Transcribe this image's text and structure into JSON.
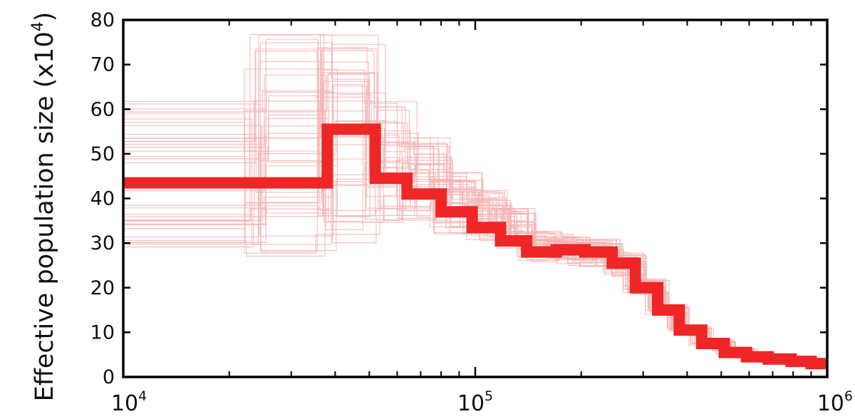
{
  "chart_data": {
    "type": "line",
    "title": "",
    "xlabel": "",
    "ylabel": {
      "text": "Effective population size (x10",
      "superscript": "4",
      "close": ")"
    },
    "x_scale": "log",
    "xlim": [
      10000,
      1000000
    ],
    "ylim": [
      0,
      80
    ],
    "grid": false,
    "legend": "none",
    "y_ticks": [
      "0",
      "10",
      "20",
      "30",
      "40",
      "50",
      "60",
      "70",
      "80"
    ],
    "x_ticks": [
      {
        "base": "10",
        "exp": "4"
      },
      {
        "base": "10",
        "exp": "5"
      },
      {
        "base": "10",
        "exp": "6"
      }
    ],
    "colors": {
      "main": "#ee2626",
      "bootstrap": "#f5b3b3",
      "axes": "#000000"
    },
    "series": [
      {
        "role": "main",
        "x": [
          10000,
          24000,
          38000,
          52000,
          64000,
          80000,
          98000,
          118000,
          140000,
          170000,
          205000,
          245000,
          285000,
          330000,
          380000,
          440000,
          510000,
          590000,
          680000,
          790000,
          900000,
          1000000
        ],
        "y": [
          43.5,
          43.5,
          55.5,
          44.5,
          41,
          37,
          33.5,
          30.5,
          28,
          28.5,
          28,
          25.5,
          20,
          15,
          10.5,
          7.5,
          5.5,
          4.5,
          4,
          3.5,
          3,
          3
        ]
      }
    ],
    "bootstrap_band": {
      "count": 40,
      "x": [
        10000,
        24000,
        38000,
        52000,
        64000,
        80000,
        98000,
        118000,
        140000,
        170000,
        205000,
        245000,
        285000,
        330000,
        380000,
        440000,
        510000,
        590000,
        680000,
        790000,
        900000,
        1000000
      ],
      "low": [
        28,
        27,
        30,
        34,
        33,
        32,
        30.5,
        28.5,
        25.5,
        25,
        24.5,
        22.5,
        18.5,
        14,
        10,
        7,
        5,
        4,
        3.5,
        3,
        2.5,
        2.5
      ],
      "high": [
        62,
        79,
        78,
        62,
        54,
        46,
        42,
        38,
        33,
        32,
        31,
        28,
        22,
        16.5,
        11.5,
        8.5,
        6.5,
        5,
        4.5,
        4,
        3.5,
        3.5
      ]
    }
  }
}
